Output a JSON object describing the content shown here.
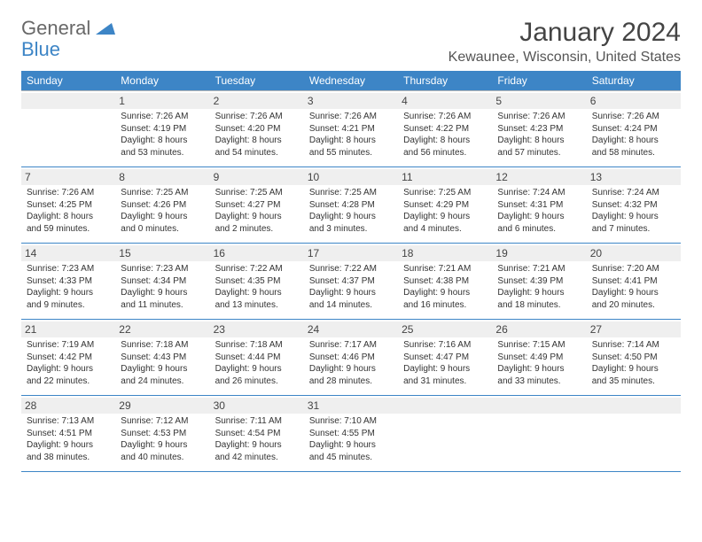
{
  "logo": {
    "line1": "General",
    "line2": "Blue"
  },
  "title": "January 2024",
  "location": "Kewaunee, Wisconsin, United States",
  "header_bg": "#3d85c6",
  "header_fg": "#ffffff",
  "daynum_bg": "#efefef",
  "row_border_top": "#b7b7b7",
  "row_border_bottom": "#3d85c6",
  "text_color": "#333333",
  "dow": [
    "Sunday",
    "Monday",
    "Tuesday",
    "Wednesday",
    "Thursday",
    "Friday",
    "Saturday"
  ],
  "weeks": [
    [
      {
        "day": "",
        "sunrise": "",
        "sunset": "",
        "daylight1": "",
        "daylight2": ""
      },
      {
        "day": "1",
        "sunrise": "Sunrise: 7:26 AM",
        "sunset": "Sunset: 4:19 PM",
        "daylight1": "Daylight: 8 hours",
        "daylight2": "and 53 minutes."
      },
      {
        "day": "2",
        "sunrise": "Sunrise: 7:26 AM",
        "sunset": "Sunset: 4:20 PM",
        "daylight1": "Daylight: 8 hours",
        "daylight2": "and 54 minutes."
      },
      {
        "day": "3",
        "sunrise": "Sunrise: 7:26 AM",
        "sunset": "Sunset: 4:21 PM",
        "daylight1": "Daylight: 8 hours",
        "daylight2": "and 55 minutes."
      },
      {
        "day": "4",
        "sunrise": "Sunrise: 7:26 AM",
        "sunset": "Sunset: 4:22 PM",
        "daylight1": "Daylight: 8 hours",
        "daylight2": "and 56 minutes."
      },
      {
        "day": "5",
        "sunrise": "Sunrise: 7:26 AM",
        "sunset": "Sunset: 4:23 PM",
        "daylight1": "Daylight: 8 hours",
        "daylight2": "and 57 minutes."
      },
      {
        "day": "6",
        "sunrise": "Sunrise: 7:26 AM",
        "sunset": "Sunset: 4:24 PM",
        "daylight1": "Daylight: 8 hours",
        "daylight2": "and 58 minutes."
      }
    ],
    [
      {
        "day": "7",
        "sunrise": "Sunrise: 7:26 AM",
        "sunset": "Sunset: 4:25 PM",
        "daylight1": "Daylight: 8 hours",
        "daylight2": "and 59 minutes."
      },
      {
        "day": "8",
        "sunrise": "Sunrise: 7:25 AM",
        "sunset": "Sunset: 4:26 PM",
        "daylight1": "Daylight: 9 hours",
        "daylight2": "and 0 minutes."
      },
      {
        "day": "9",
        "sunrise": "Sunrise: 7:25 AM",
        "sunset": "Sunset: 4:27 PM",
        "daylight1": "Daylight: 9 hours",
        "daylight2": "and 2 minutes."
      },
      {
        "day": "10",
        "sunrise": "Sunrise: 7:25 AM",
        "sunset": "Sunset: 4:28 PM",
        "daylight1": "Daylight: 9 hours",
        "daylight2": "and 3 minutes."
      },
      {
        "day": "11",
        "sunrise": "Sunrise: 7:25 AM",
        "sunset": "Sunset: 4:29 PM",
        "daylight1": "Daylight: 9 hours",
        "daylight2": "and 4 minutes."
      },
      {
        "day": "12",
        "sunrise": "Sunrise: 7:24 AM",
        "sunset": "Sunset: 4:31 PM",
        "daylight1": "Daylight: 9 hours",
        "daylight2": "and 6 minutes."
      },
      {
        "day": "13",
        "sunrise": "Sunrise: 7:24 AM",
        "sunset": "Sunset: 4:32 PM",
        "daylight1": "Daylight: 9 hours",
        "daylight2": "and 7 minutes."
      }
    ],
    [
      {
        "day": "14",
        "sunrise": "Sunrise: 7:23 AM",
        "sunset": "Sunset: 4:33 PM",
        "daylight1": "Daylight: 9 hours",
        "daylight2": "and 9 minutes."
      },
      {
        "day": "15",
        "sunrise": "Sunrise: 7:23 AM",
        "sunset": "Sunset: 4:34 PM",
        "daylight1": "Daylight: 9 hours",
        "daylight2": "and 11 minutes."
      },
      {
        "day": "16",
        "sunrise": "Sunrise: 7:22 AM",
        "sunset": "Sunset: 4:35 PM",
        "daylight1": "Daylight: 9 hours",
        "daylight2": "and 13 minutes."
      },
      {
        "day": "17",
        "sunrise": "Sunrise: 7:22 AM",
        "sunset": "Sunset: 4:37 PM",
        "daylight1": "Daylight: 9 hours",
        "daylight2": "and 14 minutes."
      },
      {
        "day": "18",
        "sunrise": "Sunrise: 7:21 AM",
        "sunset": "Sunset: 4:38 PM",
        "daylight1": "Daylight: 9 hours",
        "daylight2": "and 16 minutes."
      },
      {
        "day": "19",
        "sunrise": "Sunrise: 7:21 AM",
        "sunset": "Sunset: 4:39 PM",
        "daylight1": "Daylight: 9 hours",
        "daylight2": "and 18 minutes."
      },
      {
        "day": "20",
        "sunrise": "Sunrise: 7:20 AM",
        "sunset": "Sunset: 4:41 PM",
        "daylight1": "Daylight: 9 hours",
        "daylight2": "and 20 minutes."
      }
    ],
    [
      {
        "day": "21",
        "sunrise": "Sunrise: 7:19 AM",
        "sunset": "Sunset: 4:42 PM",
        "daylight1": "Daylight: 9 hours",
        "daylight2": "and 22 minutes."
      },
      {
        "day": "22",
        "sunrise": "Sunrise: 7:18 AM",
        "sunset": "Sunset: 4:43 PM",
        "daylight1": "Daylight: 9 hours",
        "daylight2": "and 24 minutes."
      },
      {
        "day": "23",
        "sunrise": "Sunrise: 7:18 AM",
        "sunset": "Sunset: 4:44 PM",
        "daylight1": "Daylight: 9 hours",
        "daylight2": "and 26 minutes."
      },
      {
        "day": "24",
        "sunrise": "Sunrise: 7:17 AM",
        "sunset": "Sunset: 4:46 PM",
        "daylight1": "Daylight: 9 hours",
        "daylight2": "and 28 minutes."
      },
      {
        "day": "25",
        "sunrise": "Sunrise: 7:16 AM",
        "sunset": "Sunset: 4:47 PM",
        "daylight1": "Daylight: 9 hours",
        "daylight2": "and 31 minutes."
      },
      {
        "day": "26",
        "sunrise": "Sunrise: 7:15 AM",
        "sunset": "Sunset: 4:49 PM",
        "daylight1": "Daylight: 9 hours",
        "daylight2": "and 33 minutes."
      },
      {
        "day": "27",
        "sunrise": "Sunrise: 7:14 AM",
        "sunset": "Sunset: 4:50 PM",
        "daylight1": "Daylight: 9 hours",
        "daylight2": "and 35 minutes."
      }
    ],
    [
      {
        "day": "28",
        "sunrise": "Sunrise: 7:13 AM",
        "sunset": "Sunset: 4:51 PM",
        "daylight1": "Daylight: 9 hours",
        "daylight2": "and 38 minutes."
      },
      {
        "day": "29",
        "sunrise": "Sunrise: 7:12 AM",
        "sunset": "Sunset: 4:53 PM",
        "daylight1": "Daylight: 9 hours",
        "daylight2": "and 40 minutes."
      },
      {
        "day": "30",
        "sunrise": "Sunrise: 7:11 AM",
        "sunset": "Sunset: 4:54 PM",
        "daylight1": "Daylight: 9 hours",
        "daylight2": "and 42 minutes."
      },
      {
        "day": "31",
        "sunrise": "Sunrise: 7:10 AM",
        "sunset": "Sunset: 4:55 PM",
        "daylight1": "Daylight: 9 hours",
        "daylight2": "and 45 minutes."
      },
      {
        "day": "",
        "sunrise": "",
        "sunset": "",
        "daylight1": "",
        "daylight2": ""
      },
      {
        "day": "",
        "sunrise": "",
        "sunset": "",
        "daylight1": "",
        "daylight2": ""
      },
      {
        "day": "",
        "sunrise": "",
        "sunset": "",
        "daylight1": "",
        "daylight2": ""
      }
    ]
  ]
}
